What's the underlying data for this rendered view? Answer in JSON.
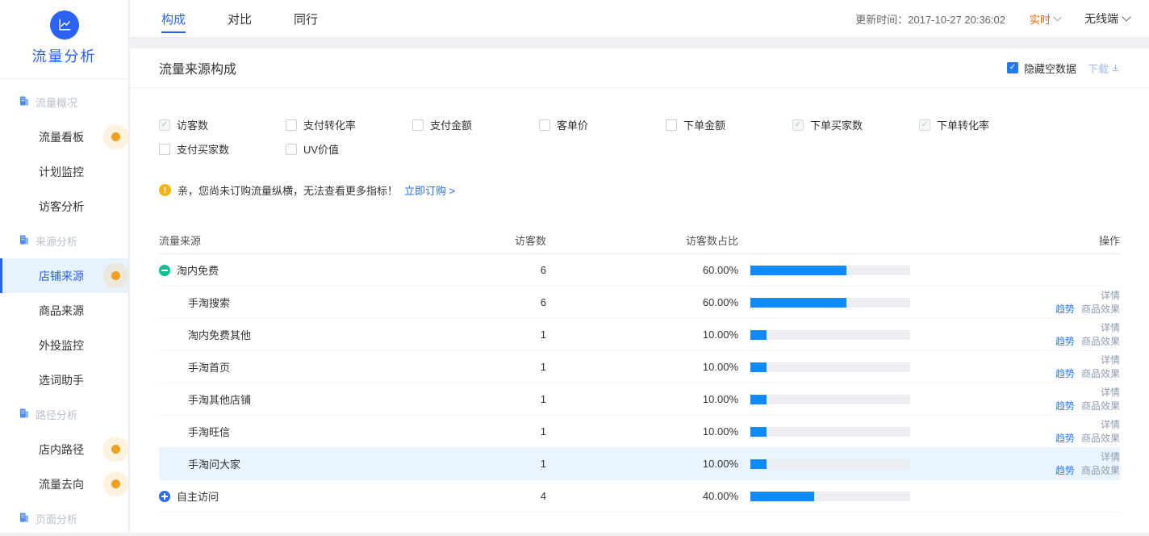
{
  "colors": {
    "accent_blue": "#2a62f5",
    "bar_blue": "#0d8bff",
    "realtime_orange": "#ff6000",
    "badge_orange": "#f0a020",
    "collapse_green": "#00c292",
    "warning_yellow": "#f6b40e"
  },
  "sidebar": {
    "app_title": "流量分析",
    "logo_icon": "line-chart-icon",
    "items": [
      {
        "id": "traffic-overview",
        "type": "section",
        "label": "流量概况"
      },
      {
        "id": "traffic-board",
        "type": "item",
        "label": "流量看板",
        "badge": true
      },
      {
        "id": "plan-monitor",
        "type": "item",
        "label": "计划监控"
      },
      {
        "id": "visitor-analysis",
        "type": "item",
        "label": "访客分析"
      },
      {
        "id": "source-analysis",
        "type": "section",
        "label": "来源分析"
      },
      {
        "id": "shop-source",
        "type": "item",
        "label": "店铺来源",
        "active": true,
        "badge": true
      },
      {
        "id": "item-source",
        "type": "item",
        "label": "商品来源"
      },
      {
        "id": "external-monitor",
        "type": "item",
        "label": "外投监控"
      },
      {
        "id": "keyword-assistant",
        "type": "item",
        "label": "选词助手"
      },
      {
        "id": "path-analysis",
        "type": "section",
        "label": "路径分析"
      },
      {
        "id": "instore-path",
        "type": "item",
        "label": "店内路径",
        "badge": true
      },
      {
        "id": "traffic-destination",
        "type": "item",
        "label": "流量去向",
        "badge": true
      },
      {
        "id": "page-analysis",
        "type": "section",
        "label": "页面分析"
      }
    ]
  },
  "topbar": {
    "tabs": [
      {
        "id": "composition",
        "label": "构成",
        "active": true
      },
      {
        "id": "compare",
        "label": "对比",
        "active": false
      },
      {
        "id": "peers",
        "label": "同行",
        "active": false
      }
    ],
    "update_time": "更新时间：2017-10-27 20:36:02",
    "realtime_label": "实时",
    "device_label": "无线端"
  },
  "panel": {
    "title": "流量来源构成",
    "hide_empty_label": "隐藏空数据",
    "hide_empty_checked": true,
    "download_label": "下载"
  },
  "metrics": [
    {
      "label": "访客数",
      "checked": true
    },
    {
      "label": "支付转化率",
      "checked": false
    },
    {
      "label": "支付金额",
      "checked": false
    },
    {
      "label": "客单价",
      "checked": false
    },
    {
      "label": "下单金额",
      "checked": false
    },
    {
      "label": "下单买家数",
      "checked": true
    },
    {
      "label": "下单转化率",
      "checked": true
    },
    {
      "label": "支付买家数",
      "checked": false
    },
    {
      "label": "UV价值",
      "checked": false
    }
  ],
  "notice": {
    "text": "亲，您尚未订购流量纵横，无法查看更多指标！",
    "link_label": "立即订购 >"
  },
  "table": {
    "columns": [
      "流量来源",
      "访客数",
      "访客数占比",
      "操作"
    ],
    "action_labels": {
      "detail": "详情",
      "trend": "趋势",
      "product": "商品效果"
    },
    "rows": [
      {
        "name": "淘内免费",
        "level": 0,
        "toggle": "minus",
        "visitors": "6",
        "ratio": "60.00%",
        "ratio_pct": 60,
        "has_actions": false
      },
      {
        "name": "手淘搜索",
        "level": 1,
        "visitors": "6",
        "ratio": "60.00%",
        "ratio_pct": 60,
        "has_actions": true
      },
      {
        "name": "淘内免费其他",
        "level": 1,
        "visitors": "1",
        "ratio": "10.00%",
        "ratio_pct": 10,
        "has_actions": true
      },
      {
        "name": "手淘首页",
        "level": 1,
        "visitors": "1",
        "ratio": "10.00%",
        "ratio_pct": 10,
        "has_actions": true
      },
      {
        "name": "手淘其他店铺",
        "level": 1,
        "visitors": "1",
        "ratio": "10.00%",
        "ratio_pct": 10,
        "has_actions": true
      },
      {
        "name": "手淘旺信",
        "level": 1,
        "visitors": "1",
        "ratio": "10.00%",
        "ratio_pct": 10,
        "has_actions": true
      },
      {
        "name": "手淘问大家",
        "level": 1,
        "visitors": "1",
        "ratio": "10.00%",
        "ratio_pct": 10,
        "has_actions": true,
        "highlighted": true
      },
      {
        "name": "自主访问",
        "level": 0,
        "toggle": "plus",
        "visitors": "4",
        "ratio": "40.00%",
        "ratio_pct": 40,
        "has_actions": false
      }
    ]
  }
}
